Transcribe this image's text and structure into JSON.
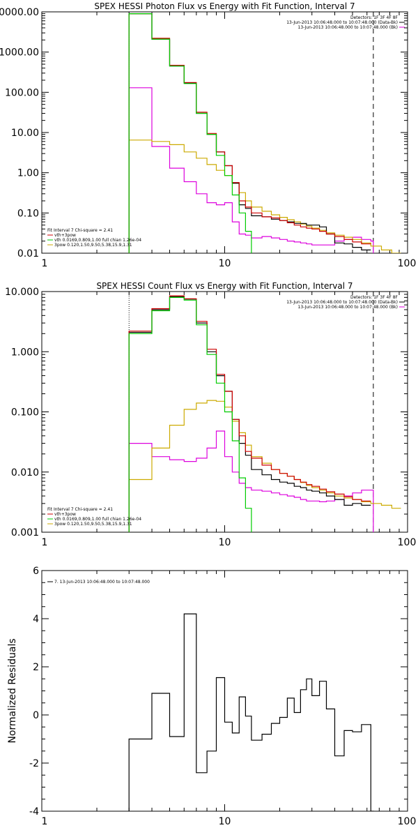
{
  "colors": {
    "data": "#000000",
    "total_fit": "#cc0000",
    "vth": "#00cc00",
    "3pow": "#ccaa00",
    "background": "#dd00dd",
    "axis": "#000000"
  },
  "chart_data": [
    {
      "type": "line",
      "title": "SPEX HESSI Photon Flux vs Energy with Fit Function, Interval 7",
      "x_scale": "log",
      "y_scale": "log",
      "xlim": [
        1,
        100
      ],
      "ylim": [
        0.01,
        10000
      ],
      "x_tick_labels": [
        "1",
        "10",
        "100"
      ],
      "y_tick_labels": [
        "0.01",
        "0.10",
        "1.00",
        "10.00",
        "100.00",
        "1000.00",
        "10000.00"
      ],
      "legend_right": [
        "Detectors: 1F 3F 4F 8F",
        "13-Jun-2013 10:06:48.000 to 10:07:48.000 (Data-Bk)",
        "13-Jun-2013 10:06:48.000 to 10:07:48.000 (Bk)"
      ],
      "legend_left": [
        "Fit Interval  7   Chi-square = 2.41",
        "vth+3pow",
        "vth 0.0169,0.809,1.00  full chian 1.26e-04",
        "3pow 0.120,1.50,9.50,5.38,15.9,1.31"
      ],
      "marker_x": [
        3,
        65
      ],
      "series": [
        {
          "name": "Data-Bk",
          "style": "data",
          "edges": [
            3,
            4,
            5,
            6,
            7,
            8,
            9,
            10,
            11,
            12,
            13,
            14,
            16,
            18,
            20,
            22,
            24,
            26,
            28,
            30,
            33,
            36,
            40,
            45,
            50,
            56,
            63
          ],
          "values": [
            9000,
            2100,
            450,
            170,
            30,
            9,
            3.3,
            1.5,
            0.55,
            0.16,
            0.13,
            0.085,
            0.08,
            0.07,
            0.065,
            0.06,
            0.055,
            0.055,
            0.05,
            0.05,
            0.045,
            0.03,
            0.018,
            0.017,
            0.014,
            0.012
          ]
        },
        {
          "name": "vth+3pow",
          "style": "total_fit",
          "edges": [
            3,
            4,
            5,
            6,
            7,
            8,
            9,
            10,
            11,
            12,
            13,
            14,
            16,
            18,
            20,
            22,
            24,
            26,
            28,
            30,
            33,
            36,
            40,
            45,
            50,
            56,
            63
          ],
          "values": [
            9000,
            2200,
            470,
            175,
            32,
            9.5,
            3.3,
            1.5,
            0.57,
            0.2,
            0.14,
            0.1,
            0.08,
            0.075,
            0.065,
            0.057,
            0.05,
            0.045,
            0.042,
            0.04,
            0.035,
            0.03,
            0.026,
            0.022,
            0.019,
            0.017
          ]
        },
        {
          "name": "vth",
          "style": "vth",
          "edges": [
            3,
            4,
            5,
            6,
            7,
            8,
            9,
            10,
            11,
            12,
            13,
            14
          ],
          "values": [
            9000,
            2100,
            450,
            165,
            30,
            9,
            2.7,
            0.85,
            0.28,
            0.1,
            0.035
          ]
        },
        {
          "name": "3pow",
          "style": "3pow",
          "edges": [
            3,
            4,
            5,
            6,
            7,
            8,
            9,
            10,
            11,
            12,
            13,
            14,
            16,
            18,
            20,
            22,
            24,
            26,
            28,
            30,
            33,
            36,
            40,
            45,
            50,
            56,
            63,
            72,
            82,
            92
          ],
          "values": [
            6.5,
            6,
            5,
            3.3,
            2.3,
            1.6,
            1.15,
            0.85,
            0.55,
            0.32,
            0.2,
            0.14,
            0.11,
            0.09,
            0.078,
            0.068,
            0.06,
            0.053,
            0.047,
            0.042,
            0.037,
            0.032,
            0.028,
            0.025,
            0.022,
            0.018,
            0.015,
            0.012,
            0.01
          ]
        },
        {
          "name": "Bk",
          "style": "background",
          "edges": [
            3,
            4,
            5,
            6,
            7,
            8,
            9,
            10,
            11,
            12,
            13,
            14,
            16,
            18,
            20,
            22,
            24,
            26,
            28,
            30,
            33,
            36,
            40,
            45,
            50,
            56,
            63,
            65
          ],
          "values": [
            130,
            4.5,
            1.3,
            0.6,
            0.3,
            0.18,
            0.16,
            0.18,
            0.06,
            0.03,
            0.028,
            0.024,
            0.026,
            0.024,
            0.022,
            0.02,
            0.019,
            0.018,
            0.017,
            0.016,
            0.016,
            0.016,
            0.02,
            0.022,
            0.025,
            0.022,
            0.02
          ]
        }
      ]
    },
    {
      "type": "line",
      "title": "SPEX HESSI Count Flux vs Energy with Fit Function, Interval 7",
      "x_scale": "log",
      "y_scale": "log",
      "xlim": [
        1,
        100
      ],
      "ylim": [
        0.001,
        10
      ],
      "x_tick_labels": [
        "1",
        "10",
        "100"
      ],
      "y_tick_labels": [
        "0.001",
        "0.010",
        "0.100",
        "1.000",
        "10.000"
      ],
      "legend_right": [
        "Detectors: 1F 3F 4F 8F",
        "13-Jun-2013 10:06:48.000 to 10:07:48.000 (Data-Bk)",
        "13-Jun-2013 10:06:48.000 to 10:07:48.000 (Bk)"
      ],
      "legend_left": [
        "Fit Interval  7   Chi-square = 2.41",
        "vth+3pow",
        "vth 0.0169,0.809,1.00  full chian 1.26e-04",
        "3pow 0.120,1.50,9.50,5.38,15.9,1.31"
      ],
      "marker_x": [
        3,
        65
      ],
      "series": [
        {
          "name": "Data-Bk",
          "style": "data",
          "edges": [
            3,
            4,
            5,
            6,
            7,
            8,
            9,
            10,
            11,
            12,
            13,
            14,
            16,
            18,
            20,
            22,
            24,
            26,
            28,
            30,
            33,
            36,
            40,
            45,
            50,
            56,
            63
          ],
          "values": [
            2.1,
            5,
            8.2,
            7.5,
            3,
            1,
            0.4,
            0.22,
            0.075,
            0.03,
            0.019,
            0.011,
            0.009,
            0.0075,
            0.0068,
            0.0065,
            0.0058,
            0.0055,
            0.005,
            0.0048,
            0.0045,
            0.004,
            0.0035,
            0.0028,
            0.003,
            0.0028
          ]
        },
        {
          "name": "vth+3pow",
          "style": "total_fit",
          "edges": [
            3,
            4,
            5,
            6,
            7,
            8,
            9,
            10,
            11,
            12,
            13,
            14,
            16,
            18,
            20,
            22,
            24,
            26,
            28,
            30,
            33,
            36,
            40,
            45,
            50,
            56,
            63
          ],
          "values": [
            2.2,
            5.2,
            8.5,
            7.6,
            3.2,
            1.1,
            0.42,
            0.22,
            0.075,
            0.04,
            0.022,
            0.017,
            0.013,
            0.011,
            0.0095,
            0.0085,
            0.0075,
            0.0068,
            0.0062,
            0.0058,
            0.0052,
            0.0047,
            0.0043,
            0.0039,
            0.0035,
            0.0033
          ]
        },
        {
          "name": "vth",
          "style": "vth",
          "edges": [
            3,
            4,
            5,
            6,
            7,
            8,
            9,
            10,
            11,
            12,
            13,
            14
          ],
          "values": [
            2,
            4.8,
            8,
            7.2,
            2.8,
            0.9,
            0.3,
            0.1,
            0.033,
            0.008,
            0.0025
          ]
        },
        {
          "name": "3pow",
          "style": "3pow",
          "edges": [
            3,
            4,
            5,
            6,
            7,
            8,
            9,
            10,
            11,
            12,
            13,
            14,
            16,
            18,
            20,
            22,
            24,
            26,
            28,
            30,
            33,
            36,
            40,
            45,
            50,
            56,
            63,
            72,
            82,
            92
          ],
          "values": [
            0.0075,
            0.025,
            0.06,
            0.11,
            0.14,
            0.155,
            0.15,
            0.12,
            0.07,
            0.045,
            0.028,
            0.018,
            0.014,
            0.011,
            0.0095,
            0.0085,
            0.0075,
            0.0067,
            0.006,
            0.0055,
            0.005,
            0.0045,
            0.004,
            0.0037,
            0.0035,
            0.0032,
            0.003,
            0.0028,
            0.0025
          ]
        },
        {
          "name": "Bk",
          "style": "background",
          "edges": [
            3,
            4,
            5,
            6,
            7,
            8,
            9,
            10,
            11,
            12,
            13,
            14,
            16,
            18,
            20,
            22,
            24,
            26,
            28,
            30,
            33,
            36,
            40,
            45,
            50,
            56,
            63,
            65
          ],
          "values": [
            0.03,
            0.018,
            0.016,
            0.015,
            0.017,
            0.025,
            0.048,
            0.018,
            0.01,
            0.0065,
            0.0055,
            0.005,
            0.0048,
            0.0045,
            0.0042,
            0.004,
            0.0038,
            0.0035,
            0.0033,
            0.0033,
            0.0032,
            0.0033,
            0.0035,
            0.004,
            0.0045,
            0.005,
            0.005
          ]
        }
      ]
    },
    {
      "type": "line",
      "title": "",
      "x_scale": "log",
      "y_scale": "linear",
      "xlim": [
        1,
        100
      ],
      "ylim": [
        -4,
        6
      ],
      "ylabel": "Normalized Residuals",
      "x_tick_labels": [
        "1",
        "10",
        "100"
      ],
      "y_tick_labels": [
        "-4",
        "-2",
        "0",
        "2",
        "4",
        "6"
      ],
      "legend_left": [
        "7. 13-Jun-2013 10:06:48.000 to 10:07:48.000"
      ],
      "series": [
        {
          "name": "7. 13-Jun-2013 10:06:48.000 to 10:07:48.000",
          "style": "data",
          "edges": [
            3,
            4,
            5,
            6,
            7,
            8,
            9,
            10,
            11,
            12,
            13,
            14,
            16,
            18,
            20,
            22,
            24,
            26,
            28,
            30,
            33,
            36,
            40,
            45,
            50,
            56,
            63,
            65
          ],
          "values": [
            -1,
            0.9,
            -0.9,
            4.2,
            -2.4,
            -1.5,
            1.55,
            -0.3,
            -0.75,
            0.75,
            -0.05,
            -1.05,
            -0.8,
            -0.35,
            -0.1,
            0.7,
            0.1,
            1.05,
            1.5,
            0.8,
            1.4,
            0.25,
            -1.7,
            -0.65,
            -0.7,
            -0.4,
            -4
          ]
        }
      ]
    }
  ]
}
